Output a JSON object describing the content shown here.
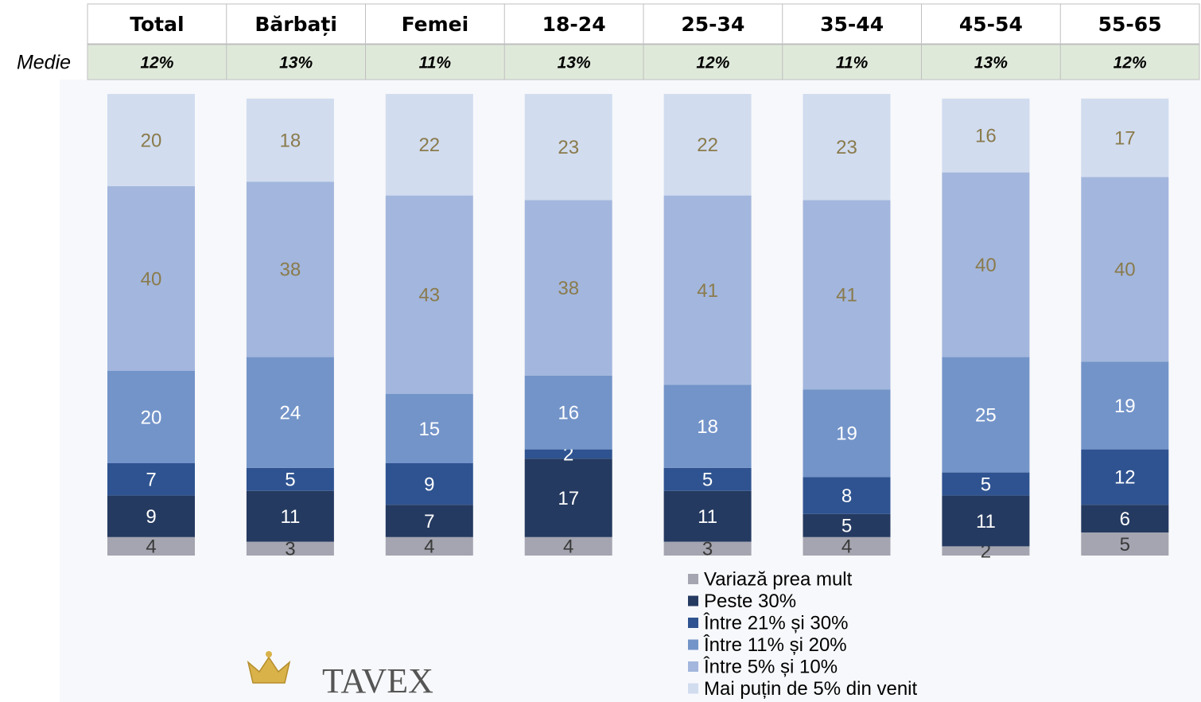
{
  "chart_data": {
    "type": "stacked_bar",
    "row_label": "Medie",
    "categories": [
      "Total",
      "Bărbați",
      "Femei",
      "18-24",
      "25-34",
      "35-44",
      "45-54",
      "55-65"
    ],
    "medie": [
      "12%",
      "13%",
      "11%",
      "13%",
      "12%",
      "11%",
      "13%",
      "12%"
    ],
    "ylim": [
      0,
      100
    ],
    "series": [
      {
        "name": "Variază prea mult",
        "color": "#a4a5b0",
        "label_color": "#3a3a3a",
        "values": [
          4,
          3,
          4,
          4,
          3,
          4,
          2,
          5
        ]
      },
      {
        "name": "Peste 30%",
        "color": "#253a60",
        "label_color": "#ffffff",
        "values": [
          9,
          11,
          7,
          17,
          11,
          5,
          11,
          6
        ]
      },
      {
        "name": "Între 21% și 30%",
        "color": "#2f5390",
        "label_color": "#ffffff",
        "values": [
          7,
          5,
          9,
          2,
          5,
          8,
          5,
          12
        ]
      },
      {
        "name": "Între 11% și 20%",
        "color": "#7394c9",
        "label_color": "#ffffff",
        "values": [
          20,
          24,
          15,
          16,
          18,
          19,
          25,
          19
        ]
      },
      {
        "name": "Între 5% și 10%",
        "color": "#a3b6dd",
        "label_color": "#8a7b4c",
        "values": [
          40,
          38,
          43,
          38,
          41,
          41,
          40,
          40
        ]
      },
      {
        "name": "Mai puțin de 5% din venit",
        "color": "#d1dcef",
        "label_color": "#8a7b4c",
        "values": [
          20,
          18,
          22,
          23,
          22,
          23,
          16,
          17
        ]
      }
    ],
    "logo": "TAVEX"
  }
}
